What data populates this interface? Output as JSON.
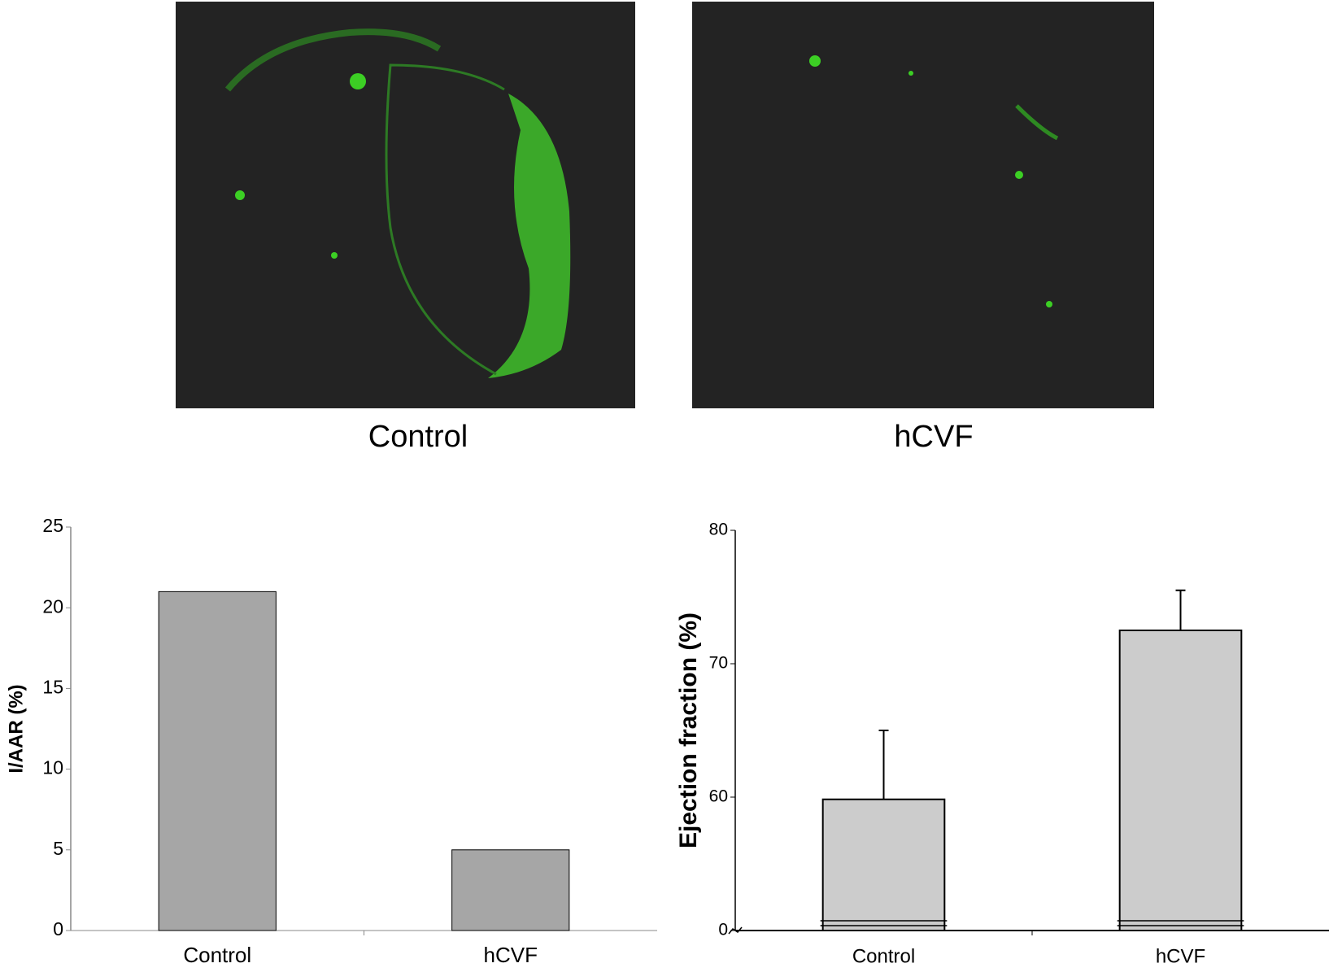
{
  "images": [
    {
      "caption": "Control"
    },
    {
      "caption": "hCVF"
    }
  ],
  "chart_data": [
    {
      "type": "bar",
      "ylabel": "I/AAR (%)",
      "categories": [
        "Control",
        "hCVF"
      ],
      "values": [
        21,
        5
      ],
      "color": "#a6a6a6",
      "ylim": [
        0,
        25
      ],
      "yticks": [
        0,
        5,
        10,
        15,
        20,
        25
      ],
      "grid": false
    },
    {
      "type": "bar",
      "ylabel": "Ejection fraction (%)",
      "categories": [
        "Control",
        "hCVF"
      ],
      "values": [
        59,
        72.5
      ],
      "errors": [
        6,
        3
      ],
      "color": "#cccccc",
      "ylim": [
        0,
        80
      ],
      "yticks": [
        0,
        60,
        70,
        80
      ],
      "axis_break": true,
      "grid": false
    }
  ]
}
